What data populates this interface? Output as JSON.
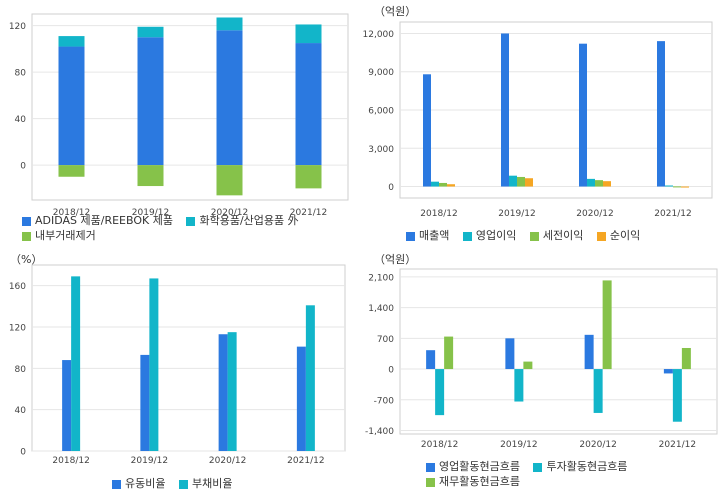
{
  "chart_data": [
    {
      "type": "bar",
      "stacked": true,
      "unit": "",
      "categories": [
        "2018/12",
        "2019/12",
        "2020/12",
        "2021/12"
      ],
      "series": [
        {
          "name": "ADIDAS 제품/REEBOK 제품",
          "color": "#2b79e0",
          "values": [
            102,
            110,
            116,
            105
          ]
        },
        {
          "name": "화학용품/산업용품 外",
          "color": "#12b5c9",
          "values": [
            9,
            9,
            11,
            16
          ]
        },
        {
          "name": "내부거래제거",
          "color": "#86c24a",
          "values": [
            -10,
            -18,
            -26,
            -20
          ]
        }
      ],
      "ylim": [
        -30,
        130
      ],
      "yticks": [
        0,
        40,
        80,
        120
      ],
      "ytick_labels": [
        "0",
        "40",
        "80",
        "120"
      ],
      "grid": true,
      "legend": "bottom"
    },
    {
      "type": "bar",
      "unit": "（억원）",
      "categories": [
        "2018/12",
        "2019/12",
        "2020/12",
        "2021/12"
      ],
      "series": [
        {
          "name": "매출액",
          "color": "#2b79e0",
          "values": [
            8800,
            12000,
            11200,
            11400
          ]
        },
        {
          "name": "영업이익",
          "color": "#12b5c9",
          "values": [
            380,
            850,
            600,
            80
          ]
        },
        {
          "name": "세전이익",
          "color": "#86c24a",
          "values": [
            280,
            750,
            500,
            10
          ]
        },
        {
          "name": "순이익",
          "color": "#f5a623",
          "values": [
            180,
            650,
            420,
            -80
          ]
        }
      ],
      "ylim": [
        -900,
        12900
      ],
      "yticks": [
        0,
        3000,
        6000,
        9000,
        12000
      ],
      "ytick_labels": [
        "0",
        "3,000",
        "6,000",
        "9,000",
        "12,000"
      ],
      "grid": true,
      "legend": "bottom"
    },
    {
      "type": "bar",
      "unit": "（%）",
      "categories": [
        "2018/12",
        "2019/12",
        "2020/12",
        "2021/12"
      ],
      "series": [
        {
          "name": "유동비율",
          "color": "#2b79e0",
          "values": [
            88,
            93,
            113,
            101
          ]
        },
        {
          "name": "부채비율",
          "color": "#12b5c9",
          "values": [
            169,
            167,
            115,
            141
          ]
        }
      ],
      "ylim": [
        0,
        180
      ],
      "yticks": [
        0,
        40,
        80,
        120,
        160
      ],
      "ytick_labels": [
        "0",
        "40",
        "80",
        "120",
        "160"
      ],
      "grid": true,
      "legend": "bottom"
    },
    {
      "type": "bar",
      "unit": "（억원）",
      "categories": [
        "2018/12",
        "2019/12",
        "2020/12",
        "2021/12"
      ],
      "series": [
        {
          "name": "영업활동현금흐름",
          "color": "#2b79e0",
          "values": [
            430,
            700,
            780,
            -100
          ]
        },
        {
          "name": "투자활동현금흐름",
          "color": "#12b5c9",
          "values": [
            -1050,
            -740,
            -1000,
            -1200
          ]
        },
        {
          "name": "재무활동현금흐름",
          "color": "#86c24a",
          "values": [
            740,
            170,
            2020,
            480
          ]
        }
      ],
      "ylim": [
        -1480,
        2280
      ],
      "yticks": [
        -1400,
        -700,
        0,
        700,
        1400,
        2100
      ],
      "ytick_labels": [
        "-1,400",
        "-700",
        "0",
        "700",
        "1,400",
        "2,100"
      ],
      "grid": true,
      "legend": "bottom"
    }
  ]
}
